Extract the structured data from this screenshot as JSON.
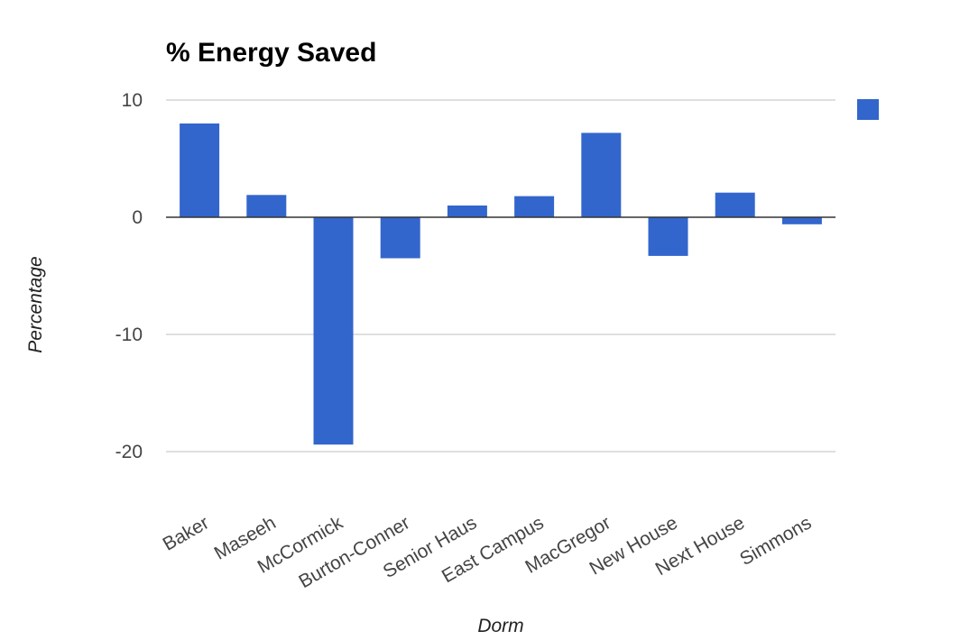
{
  "chart_data": {
    "type": "bar",
    "title": "% Energy Saved",
    "xlabel": "Dorm",
    "ylabel": "Percentage",
    "categories": [
      "Baker",
      "Maseeh",
      "McCormick",
      "Burton-Conner",
      "Senior Haus",
      "East Campus",
      "MacGregor",
      "New House",
      "Next House",
      "Simmons"
    ],
    "series": [
      {
        "values": [
          8.0,
          1.9,
          -19.4,
          -3.5,
          1.0,
          1.8,
          7.2,
          -3.3,
          2.1,
          -0.6
        ]
      }
    ],
    "ylim": [
      -20,
      10
    ],
    "yticks": [
      "10",
      "0",
      "-10",
      "-20"
    ],
    "grid": true,
    "legend": "right",
    "colors": {
      "bar": "#3366cc",
      "grid": "#cccccc",
      "zero_line": "#333333"
    }
  }
}
